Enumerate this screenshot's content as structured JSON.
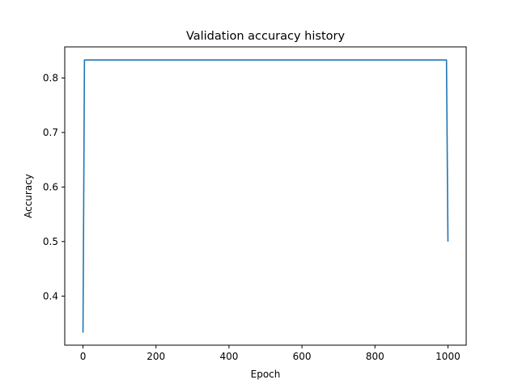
{
  "chart_data": {
    "type": "line",
    "title": "Validation accuracy history",
    "xlabel": "Epoch",
    "ylabel": "Accuracy",
    "xlim": [
      -50,
      1050
    ],
    "ylim": [
      0.31,
      0.857
    ],
    "xticks": [
      0,
      200,
      400,
      600,
      800,
      1000
    ],
    "yticks": [
      0.4,
      0.5,
      0.6,
      0.7,
      0.8
    ],
    "grid": false,
    "series": [
      {
        "color": "#1f77b4",
        "x": [
          0,
          4,
          996,
          1000
        ],
        "y": [
          0.333,
          0.833,
          0.833,
          0.5
        ]
      }
    ]
  }
}
